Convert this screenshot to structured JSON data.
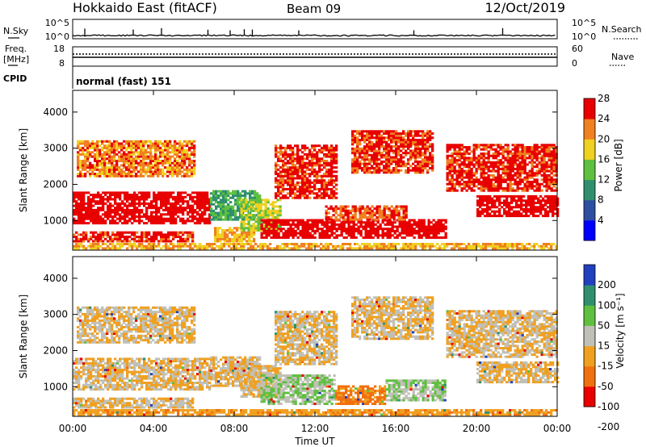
{
  "header": {
    "title": "Hokkaido East (fitACF)",
    "beam": "Beam 09",
    "date": "12/Oct/2019"
  },
  "noise_panel": {
    "left_label": "N.Sky",
    "right_label": "N.Search",
    "left_ticks": [
      "10^5",
      "10^0"
    ],
    "right_ticks": [
      "10^5",
      "10^0"
    ],
    "spikes_hours": [
      0.6,
      3.0,
      4.4,
      6.7,
      7.8,
      8.5,
      8.9,
      11.2,
      16.9,
      21.3
    ]
  },
  "freq_panel": {
    "left_label_1": "Freq.",
    "left_label_2": "[MHz]",
    "right_label": "Nave",
    "left_ticks": [
      "18",
      "8"
    ],
    "right_ticks": [
      "60",
      "0"
    ]
  },
  "cpid_panel": {
    "label": "CPID",
    "text": "normal (fast) 151"
  },
  "time_axis": {
    "label": "Time UT",
    "tick_labels": [
      "00:00",
      "04:00",
      "08:00",
      "12:00",
      "16:00",
      "20:00",
      "00:00"
    ],
    "range_hours": [
      0,
      24
    ]
  },
  "chart_data": [
    {
      "type": "heatmap",
      "panel": "power",
      "ylabel": "Slant Range [km]",
      "y_ticks": [
        1000,
        2000,
        3000,
        4000
      ],
      "ylim": [
        180,
        4600
      ],
      "colorbar_label": "Power [dB]",
      "colorbar_ticks": [
        4,
        8,
        12,
        16,
        20,
        24,
        28
      ],
      "colorbar_colors": [
        "#0000ff",
        "#2e4fa0",
        "#2f8f6f",
        "#5fc040",
        "#f0d020",
        "#f08020",
        "#e80000"
      ],
      "regions": [
        {
          "t0": 0.0,
          "t1": 6.8,
          "r0": 900,
          "r1": 1800,
          "v": 28
        },
        {
          "t0": 0.0,
          "t1": 6.0,
          "r0": 400,
          "r1": 700,
          "v": 26
        },
        {
          "t0": 0.2,
          "t1": 6.0,
          "r0": 2200,
          "r1": 3200,
          "v": 22
        },
        {
          "t0": 6.8,
          "t1": 9.3,
          "r0": 1000,
          "r1": 1800,
          "v": 12
        },
        {
          "t0": 7.0,
          "t1": 9.0,
          "r0": 400,
          "r1": 800,
          "v": 20
        },
        {
          "t0": 8.3,
          "t1": 10.3,
          "r0": 700,
          "r1": 1600,
          "v": 16
        },
        {
          "t0": 9.3,
          "t1": 18.5,
          "r0": 500,
          "r1": 1000,
          "v": 28
        },
        {
          "t0": 10.0,
          "t1": 13.0,
          "r0": 1600,
          "r1": 3100,
          "v": 26
        },
        {
          "t0": 13.8,
          "t1": 17.8,
          "r0": 2300,
          "r1": 3500,
          "v": 25
        },
        {
          "t0": 12.5,
          "t1": 16.5,
          "r0": 1000,
          "r1": 1400,
          "v": 24
        },
        {
          "t0": 18.5,
          "t1": 24.0,
          "r0": 1800,
          "r1": 3100,
          "v": 26
        },
        {
          "t0": 20.0,
          "t1": 24.0,
          "r0": 1100,
          "r1": 1700,
          "v": 28
        },
        {
          "t0": 0.0,
          "t1": 24.0,
          "r0": 200,
          "r1": 350,
          "v": 20
        }
      ]
    },
    {
      "type": "heatmap",
      "panel": "velocity",
      "ylabel": "Slant Range [km]",
      "y_ticks": [
        1000,
        2000,
        3000,
        4000
      ],
      "ylim": [
        180,
        4600
      ],
      "colorbar_label": "Velocity [m s⁻¹]",
      "colorbar_ticks": [
        200,
        100,
        50,
        15,
        -15,
        -50,
        -100,
        -200
      ],
      "colorbar_colors": [
        "#2040c0",
        "#2f8f6f",
        "#5fc040",
        "#c0c0b8",
        "#f0a020",
        "#f07010",
        "#e80000"
      ],
      "regions": [
        {
          "t0": 0.0,
          "t1": 6.8,
          "r0": 900,
          "r1": 1800,
          "v": 0
        },
        {
          "t0": 0.0,
          "t1": 6.0,
          "r0": 400,
          "r1": 700,
          "v": 0
        },
        {
          "t0": 0.2,
          "t1": 6.0,
          "r0": 2200,
          "r1": 3200,
          "v": 0
        },
        {
          "t0": 6.8,
          "t1": 9.3,
          "r0": 1000,
          "r1": 1800,
          "v": 0
        },
        {
          "t0": 8.3,
          "t1": 10.3,
          "r0": 700,
          "r1": 1600,
          "v": 0
        },
        {
          "t0": 9.3,
          "t1": 13.0,
          "r0": 500,
          "r1": 1300,
          "v": 30
        },
        {
          "t0": 13.0,
          "t1": 15.5,
          "r0": 500,
          "r1": 1000,
          "v": -40
        },
        {
          "t0": 15.5,
          "t1": 18.5,
          "r0": 600,
          "r1": 1200,
          "v": 30
        },
        {
          "t0": 10.0,
          "t1": 13.0,
          "r0": 1600,
          "r1": 3100,
          "v": 0
        },
        {
          "t0": 13.8,
          "t1": 17.8,
          "r0": 2300,
          "r1": 3500,
          "v": 0
        },
        {
          "t0": 18.5,
          "t1": 24.0,
          "r0": 1800,
          "r1": 3100,
          "v": 0
        },
        {
          "t0": 20.0,
          "t1": 24.0,
          "r0": 1100,
          "r1": 1700,
          "v": 0
        },
        {
          "t0": 0.0,
          "t1": 24.0,
          "r0": 200,
          "r1": 350,
          "v": -20
        }
      ]
    }
  ]
}
